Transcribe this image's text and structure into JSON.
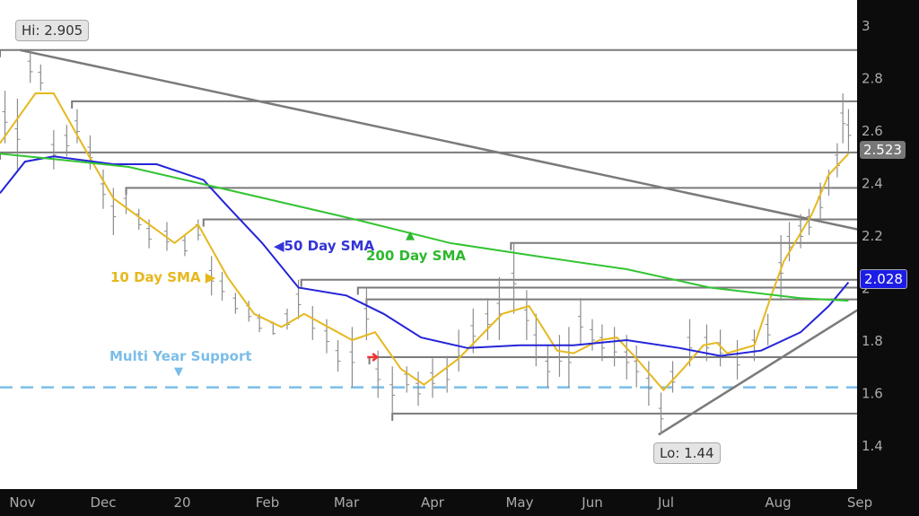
{
  "chart_data": {
    "type": "line",
    "x_ticks": [
      "Nov",
      "Dec",
      "20",
      "Feb",
      "Mar",
      "Apr",
      "May",
      "Jun",
      "Jul",
      "Aug",
      "Sep"
    ],
    "y_ticks": [
      "3",
      "2.8",
      "2.6",
      "2.4",
      "2.2",
      "2",
      "1.8",
      "1.6",
      "1.4"
    ],
    "ylim": [
      1.25,
      3.05
    ],
    "xlim": [
      "2019-10-23",
      "2020-09-01"
    ],
    "grid": false,
    "colors": {
      "price": "#8c8c8c",
      "sma10": "#e6b81e",
      "sma50": "#2424d8",
      "sma200": "#33c433",
      "levels": "#7a7a7a",
      "support": "#7bbde8",
      "background": "#ffffff",
      "axis_bg": "#0c0c0c"
    },
    "price_bars": [
      [
        "2019-10-25",
        2.75,
        2.55
      ],
      [
        "2019-10-30",
        2.72,
        2.45
      ],
      [
        "2019-11-04",
        2.905,
        2.78
      ],
      [
        "2019-11-08",
        2.85,
        2.75
      ],
      [
        "2019-11-13",
        2.6,
        2.45
      ],
      [
        "2019-11-18",
        2.62,
        2.5
      ],
      [
        "2019-11-22",
        2.68,
        2.55
      ],
      [
        "2019-11-27",
        2.58,
        2.45
      ],
      [
        "2019-12-02",
        2.45,
        2.3
      ],
      [
        "2019-12-06",
        2.38,
        2.2
      ],
      [
        "2019-12-11",
        2.36,
        2.28
      ],
      [
        "2019-12-16",
        2.3,
        2.22
      ],
      [
        "2019-12-20",
        2.26,
        2.15
      ],
      [
        "2019-12-27",
        2.25,
        2.14
      ],
      [
        "2020-01-03",
        2.2,
        2.12
      ],
      [
        "2020-01-08",
        2.26,
        2.18
      ],
      [
        "2020-01-13",
        2.12,
        1.97
      ],
      [
        "2020-01-17",
        2.06,
        1.95
      ],
      [
        "2020-01-22",
        1.98,
        1.9
      ],
      [
        "2020-01-27",
        1.95,
        1.87
      ],
      [
        "2020-01-31",
        1.9,
        1.83
      ],
      [
        "2020-02-05",
        1.87,
        1.82
      ],
      [
        "2020-02-10",
        1.92,
        1.84
      ],
      [
        "2020-02-14",
        2.03,
        1.88
      ],
      [
        "2020-02-19",
        1.93,
        1.8
      ],
      [
        "2020-02-24",
        1.88,
        1.75
      ],
      [
        "2020-02-28",
        1.8,
        1.68
      ],
      [
        "2020-03-04",
        1.85,
        1.62
      ],
      [
        "2020-03-09",
        2.0,
        1.8
      ],
      [
        "2020-03-13",
        1.76,
        1.58
      ],
      [
        "2020-03-18",
        1.7,
        1.52
      ],
      [
        "2020-03-23",
        1.7,
        1.6
      ],
      [
        "2020-03-27",
        1.68,
        1.55
      ],
      [
        "2020-04-01",
        1.73,
        1.58
      ],
      [
        "2020-04-06",
        1.74,
        1.6
      ],
      [
        "2020-04-10",
        1.84,
        1.68
      ],
      [
        "2020-04-15",
        1.92,
        1.75
      ],
      [
        "2020-04-20",
        1.96,
        1.8
      ],
      [
        "2020-04-24",
        2.04,
        1.8
      ],
      [
        "2020-04-29",
        2.17,
        1.9
      ],
      [
        "2020-05-04",
        1.99,
        1.8
      ],
      [
        "2020-05-08",
        1.9,
        1.7
      ],
      [
        "2020-05-13",
        1.78,
        1.62
      ],
      [
        "2020-05-18",
        1.82,
        1.66
      ],
      [
        "2020-05-22",
        1.85,
        1.62
      ],
      [
        "2020-05-27",
        1.96,
        1.78
      ],
      [
        "2020-06-01",
        1.88,
        1.76
      ],
      [
        "2020-06-05",
        1.86,
        1.72
      ],
      [
        "2020-06-10",
        1.85,
        1.7
      ],
      [
        "2020-06-15",
        1.82,
        1.65
      ],
      [
        "2020-06-19",
        1.78,
        1.62
      ],
      [
        "2020-06-24",
        1.72,
        1.55
      ],
      [
        "2020-06-29",
        1.6,
        1.44
      ],
      [
        "2020-07-03",
        1.72,
        1.6
      ],
      [
        "2020-07-08",
        1.88,
        1.7
      ],
      [
        "2020-07-13",
        1.86,
        1.72
      ],
      [
        "2020-07-17",
        1.84,
        1.7
      ],
      [
        "2020-07-22",
        1.8,
        1.65
      ],
      [
        "2020-07-27",
        1.84,
        1.72
      ],
      [
        "2020-07-31",
        1.9,
        1.78
      ],
      [
        "2020-08-04",
        2.2,
        1.95
      ],
      [
        "2020-08-07",
        2.25,
        2.1
      ],
      [
        "2020-08-11",
        2.28,
        2.15
      ],
      [
        "2020-08-14",
        2.3,
        2.2
      ],
      [
        "2020-08-18",
        2.4,
        2.25
      ],
      [
        "2020-08-21",
        2.45,
        2.35
      ],
      [
        "2020-08-24",
        2.55,
        2.42
      ],
      [
        "2020-08-26",
        2.74,
        2.55
      ],
      [
        "2020-08-28",
        2.68,
        2.52
      ]
    ],
    "series": [
      {
        "name": "10 Day SMA",
        "key": "sma10",
        "points": [
          [
            "2019-10-23",
            2.55
          ],
          [
            "2019-11-06",
            2.74
          ],
          [
            "2019-11-13",
            2.74
          ],
          [
            "2019-11-26",
            2.51
          ],
          [
            "2019-12-06",
            2.34
          ],
          [
            "2019-12-30",
            2.17
          ],
          [
            "2020-01-08",
            2.24
          ],
          [
            "2020-01-19",
            2.04
          ],
          [
            "2020-01-29",
            1.9
          ],
          [
            "2020-02-08",
            1.85
          ],
          [
            "2020-02-16",
            1.9
          ],
          [
            "2020-03-04",
            1.8
          ],
          [
            "2020-03-12",
            1.83
          ],
          [
            "2020-03-21",
            1.69
          ],
          [
            "2020-03-29",
            1.63
          ],
          [
            "2020-04-10",
            1.73
          ],
          [
            "2020-04-25",
            1.9
          ],
          [
            "2020-05-05",
            1.93
          ],
          [
            "2020-05-17",
            1.76
          ],
          [
            "2020-05-24",
            1.75
          ],
          [
            "2020-06-04",
            1.8
          ],
          [
            "2020-06-11",
            1.81
          ],
          [
            "2020-06-19",
            1.73
          ],
          [
            "2020-06-30",
            1.61
          ],
          [
            "2020-07-06",
            1.69
          ],
          [
            "2020-07-12",
            1.78
          ],
          [
            "2020-07-16",
            1.79
          ],
          [
            "2020-07-19",
            1.75
          ],
          [
            "2020-07-27",
            1.78
          ],
          [
            "2020-08-01",
            1.97
          ],
          [
            "2020-08-05",
            2.1
          ],
          [
            "2020-08-15",
            2.28
          ],
          [
            "2020-08-21",
            2.43
          ],
          [
            "2020-08-28",
            2.51
          ]
        ]
      },
      {
        "name": "50 Day SMA",
        "key": "sma50",
        "points": [
          [
            "2019-10-23",
            2.36
          ],
          [
            "2019-11-02",
            2.48
          ],
          [
            "2019-11-13",
            2.5
          ],
          [
            "2019-12-06",
            2.47
          ],
          [
            "2019-12-23",
            2.47
          ],
          [
            "2020-01-10",
            2.41
          ],
          [
            "2020-01-19",
            2.31
          ],
          [
            "2020-02-01",
            2.17
          ],
          [
            "2020-02-14",
            2.0
          ],
          [
            "2020-03-02",
            1.97
          ],
          [
            "2020-03-15",
            1.9
          ],
          [
            "2020-03-28",
            1.81
          ],
          [
            "2020-04-13",
            1.77
          ],
          [
            "2020-05-01",
            1.78
          ],
          [
            "2020-05-24",
            1.78
          ],
          [
            "2020-06-15",
            1.8
          ],
          [
            "2020-07-05",
            1.77
          ],
          [
            "2020-07-17",
            1.74
          ],
          [
            "2020-07-29",
            1.76
          ],
          [
            "2020-08-11",
            1.83
          ],
          [
            "2020-08-21",
            1.93
          ],
          [
            "2020-08-28",
            2.02
          ]
        ]
      },
      {
        "name": "200 Day SMA",
        "key": "sma200",
        "points": [
          [
            "2019-10-23",
            2.51
          ],
          [
            "2019-11-13",
            2.49
          ],
          [
            "2019-12-12",
            2.46
          ],
          [
            "2020-01-16",
            2.38
          ],
          [
            "2020-03-05",
            2.26
          ],
          [
            "2020-04-07",
            2.17
          ],
          [
            "2020-05-08",
            2.12
          ],
          [
            "2020-06-15",
            2.07
          ],
          [
            "2020-07-14",
            2.0
          ],
          [
            "2020-08-11",
            1.96
          ],
          [
            "2020-08-28",
            1.95
          ]
        ]
      }
    ],
    "levels": [
      [
        "2019-10-23",
        2.905
      ],
      [
        "2019-11-20",
        2.71
      ],
      [
        "2019-10-23",
        2.515
      ],
      [
        "2019-12-11",
        2.38
      ],
      [
        "2020-01-10",
        2.26
      ],
      [
        "2020-04-28",
        2.17
      ],
      [
        "2020-02-15",
        2.03
      ],
      [
        "2020-03-06",
        2.0
      ],
      [
        "2020-03-09",
        1.955
      ],
      [
        "2020-03-10",
        1.735
      ],
      [
        "2020-03-18",
        1.52
      ]
    ],
    "trendlines": [
      [
        [
          "2019-10-31",
          2.905
        ],
        [
          "2020-09-01",
          2.22
        ]
      ],
      [
        [
          "2020-06-28",
          1.44
        ],
        [
          "2020-09-01",
          1.92
        ]
      ]
    ],
    "support_level": 1.62,
    "annotations": {
      "hi": "Hi: 2.905",
      "lo": "Lo: 1.44",
      "sma10": "10 Day SMA",
      "sma50": "50 Day SMA",
      "sma200": "200 Day SMA",
      "support": "Multi Year Support",
      "last_price": "2.523",
      "last_sma50": "2.028"
    },
    "markers": [
      {
        "type": "red-arrow",
        "date": "2020-03-13",
        "value": 1.735
      }
    ]
  }
}
